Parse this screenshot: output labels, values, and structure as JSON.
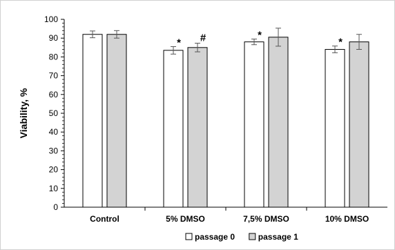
{
  "chart_data": {
    "type": "bar",
    "ylabel": "Viability, %",
    "ylim": [
      0,
      100
    ],
    "yticks": [
      0,
      10,
      20,
      30,
      40,
      50,
      60,
      70,
      80,
      90,
      100
    ],
    "grid": false,
    "legend_position": "bottom",
    "categories": [
      "Control",
      "5% DMSO",
      "7,5% DMSO",
      "10% DMSO"
    ],
    "series": [
      {
        "name": "passage 0",
        "color": "#ffffff",
        "values": [
          92,
          83.5,
          88,
          84
        ],
        "errors": [
          1.8,
          2.0,
          1.5,
          1.8
        ],
        "annotations": [
          "",
          "*",
          "*",
          "*"
        ]
      },
      {
        "name": "passage 1",
        "color": "#d3d3d3",
        "values": [
          92,
          85,
          90.5,
          88
        ],
        "errors": [
          2.0,
          2.3,
          4.8,
          4.0
        ],
        "annotations": [
          "",
          "#",
          "",
          ""
        ]
      }
    ]
  }
}
